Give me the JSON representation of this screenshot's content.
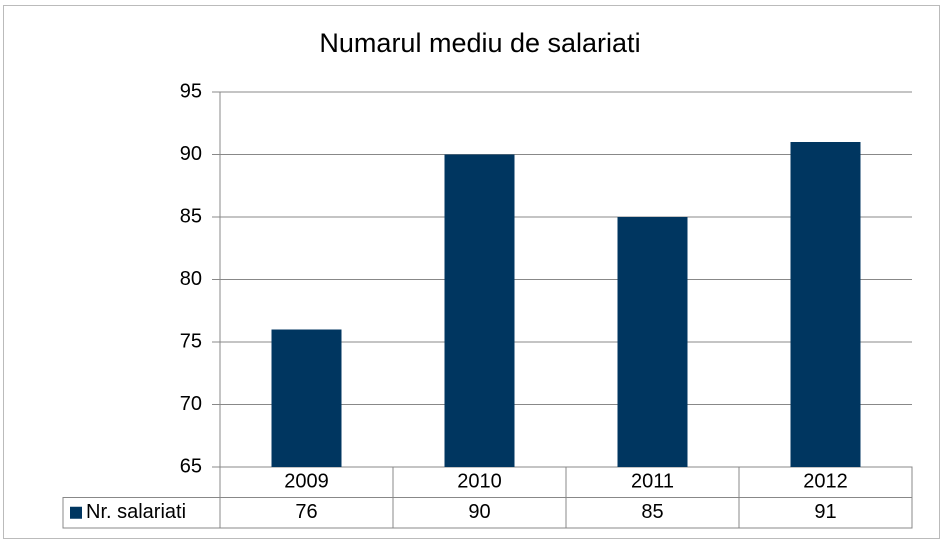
{
  "chart_data": {
    "type": "bar",
    "title": "Numarul mediu de salariati",
    "categories": [
      "2009",
      "2010",
      "2011",
      "2012"
    ],
    "series": [
      {
        "name": "Nr. salariati",
        "color": "#003660",
        "values": [
          76,
          90,
          85,
          91
        ]
      }
    ],
    "ylim": [
      65,
      95
    ],
    "yticks": [
      65,
      70,
      75,
      80,
      85,
      90,
      95
    ],
    "grid": true
  }
}
